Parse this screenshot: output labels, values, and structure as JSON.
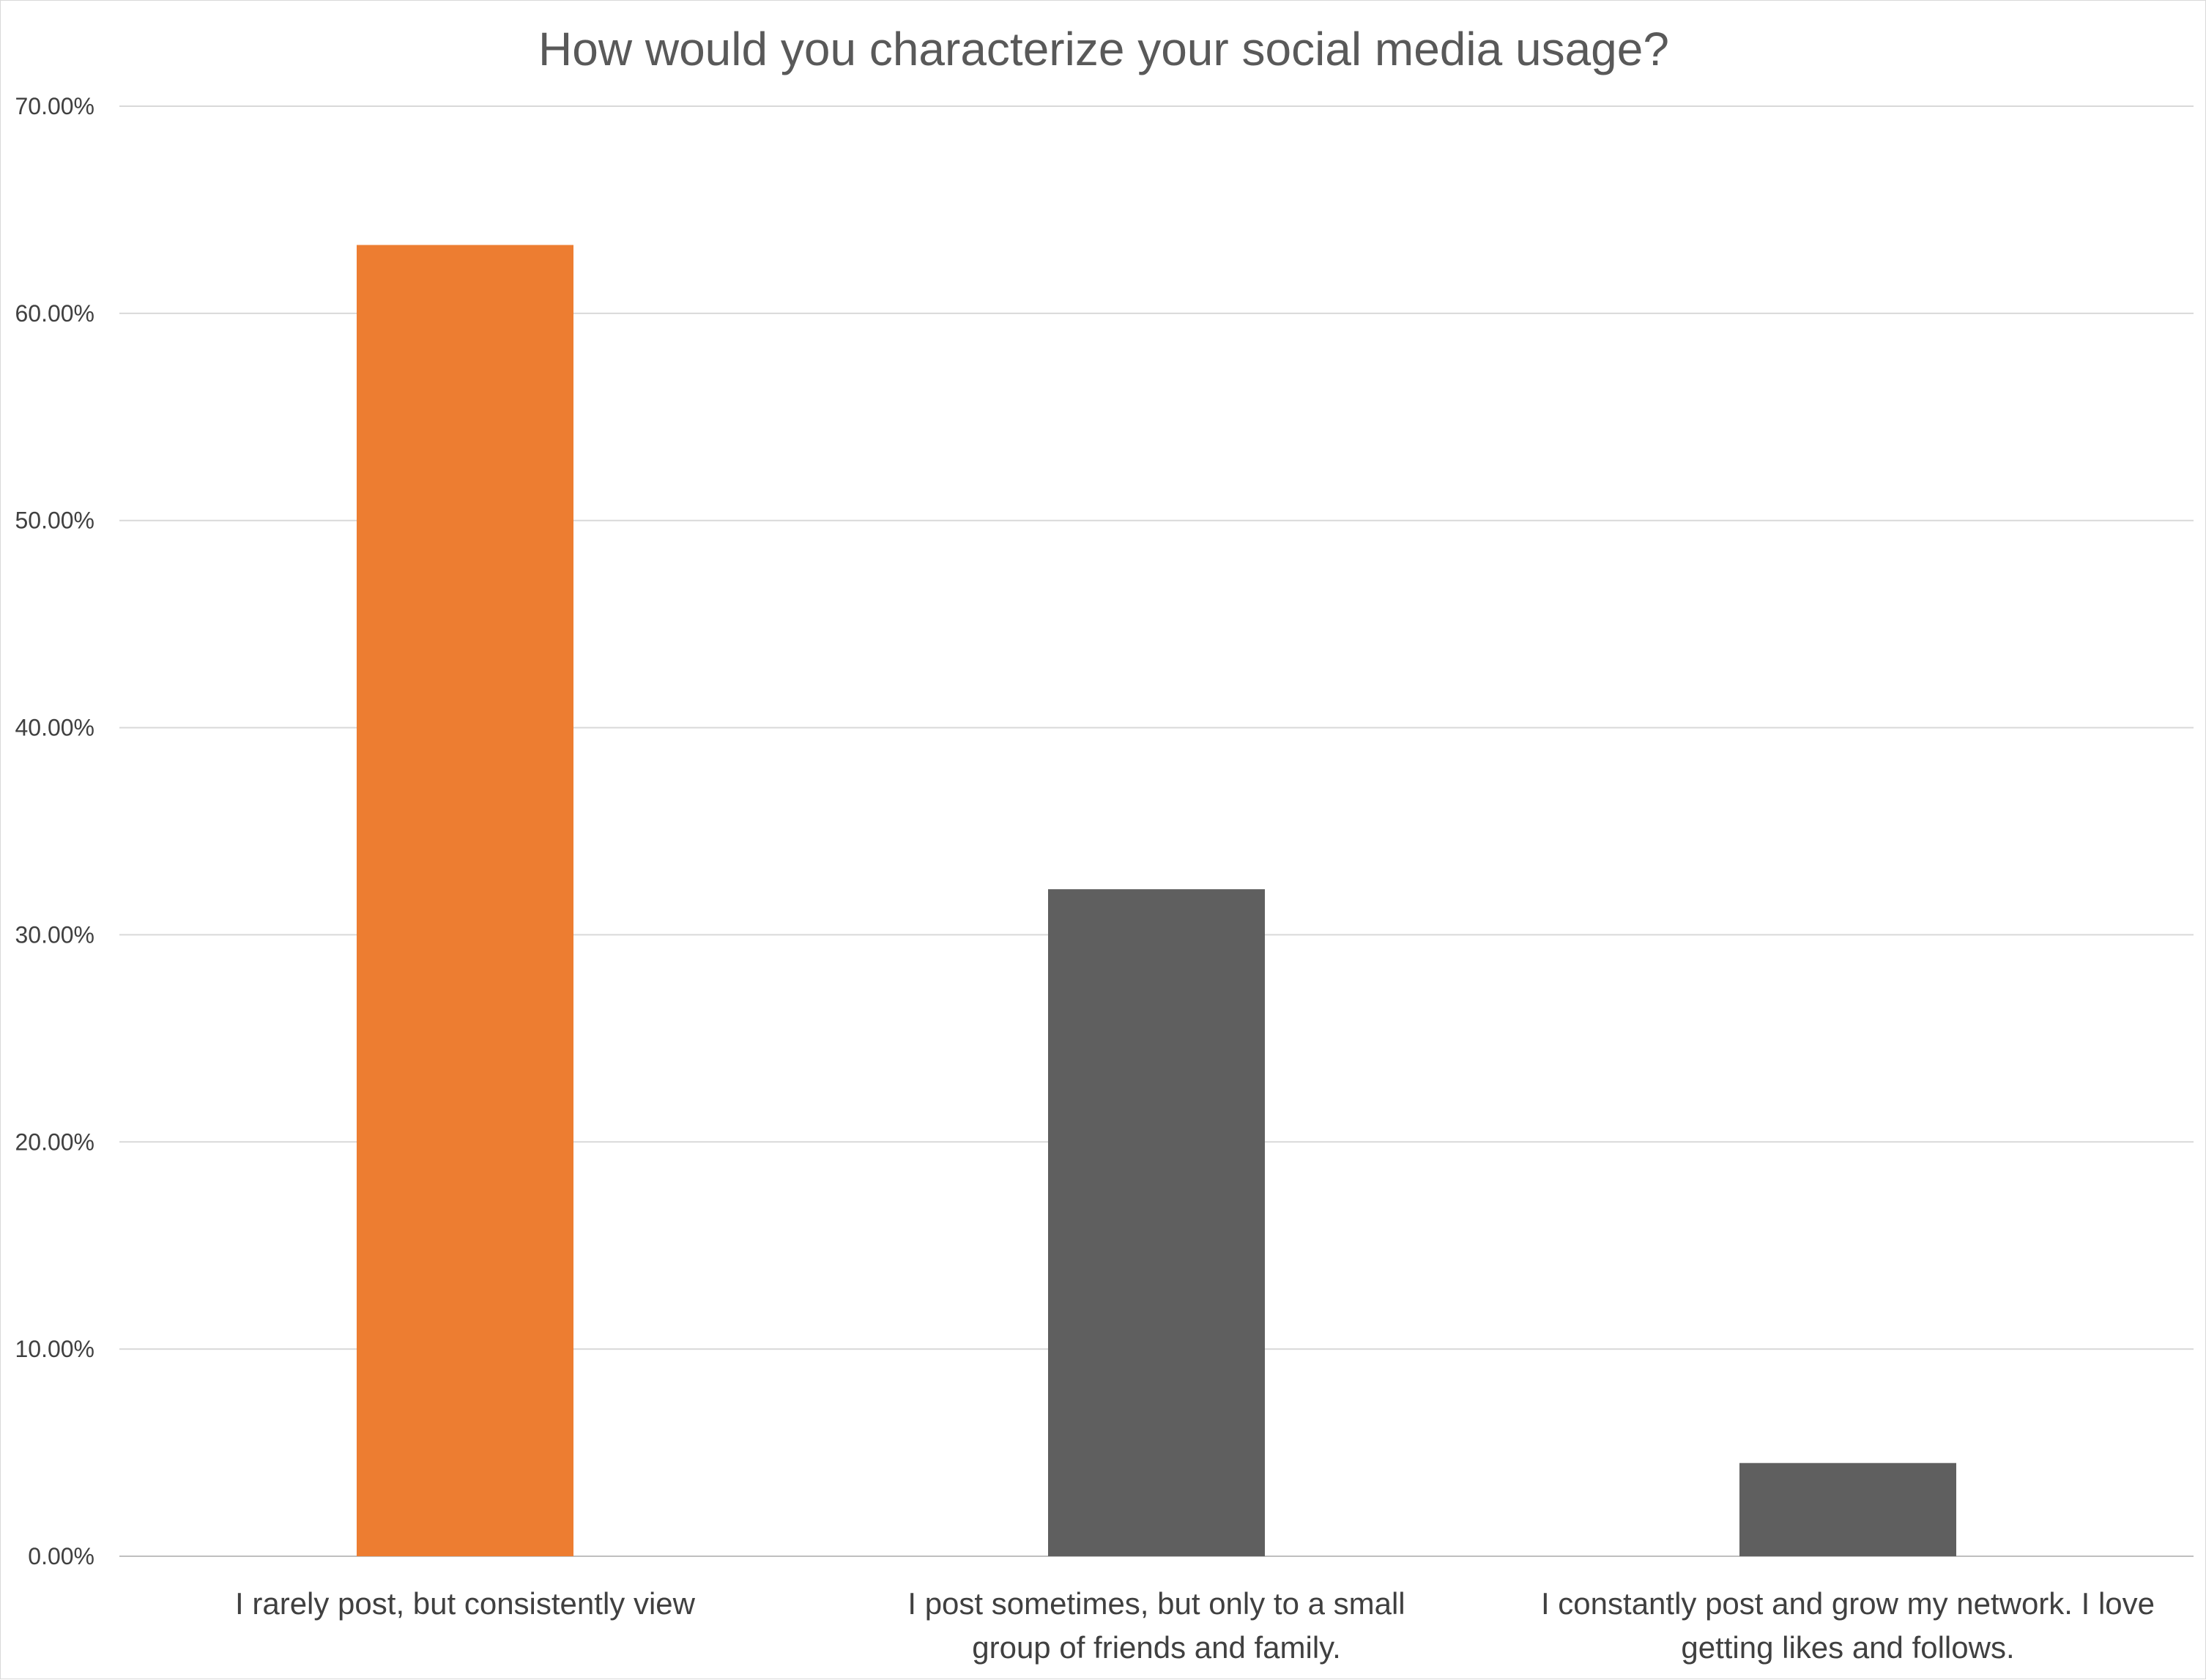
{
  "chart_data": {
    "type": "bar",
    "title": "How would you characterize your social media usage?",
    "categories": [
      [
        "I rarely post, but consistently view"
      ],
      [
        "I post sometimes, but only to a small",
        "group of friends and family."
      ],
      [
        "I constantly post and grow my network. I love",
        "getting likes and follows."
      ]
    ],
    "values": [
      63.3,
      32.2,
      4.5
    ],
    "bar_colors": [
      "#ED7D31",
      "#5F5F5F",
      "#5F5F5F"
    ],
    "yticks": [
      "0.00%",
      "10.00%",
      "20.00%",
      "30.00%",
      "40.00%",
      "50.00%",
      "60.00%",
      "70.00%"
    ],
    "ylim": [
      0,
      70
    ],
    "grid": true,
    "legend": "none",
    "xlabel": "",
    "ylabel": ""
  }
}
